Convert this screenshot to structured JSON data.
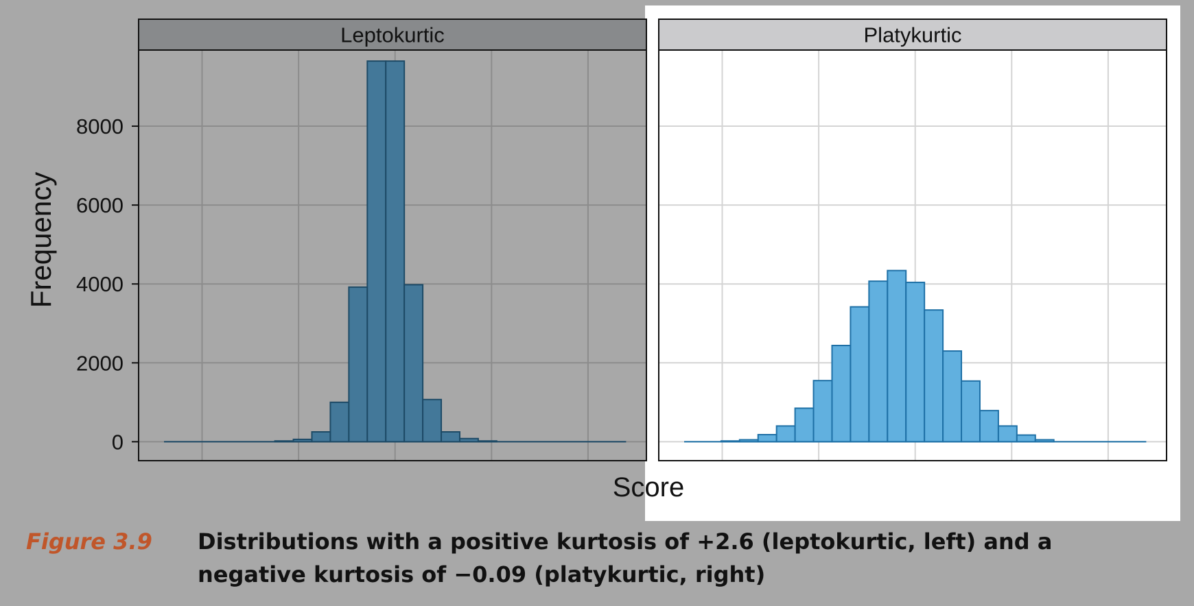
{
  "figure": {
    "label": "Figure 3.9",
    "caption": "Distributions with a positive kurtosis of +2.6 (leptokurtic, left) and a negative kurtosis of −0.09 (platykurtic, right)"
  },
  "chart_data": [
    {
      "type": "bar",
      "panel_title": "Leptokurtic",
      "title": "",
      "xlabel": "Score",
      "ylabel": "Frequency",
      "ylim": [
        -480,
        9930
      ],
      "yticks": [
        0,
        2000,
        4000,
        6000,
        8000
      ],
      "grid": true,
      "colors": {
        "fill": "#437899",
        "stroke": "#1d4a66",
        "panel_bg": "#a8a8a8",
        "grid": "#8c8c8c",
        "strip": "#888a8c"
      },
      "bin_index": [
        0,
        1,
        2,
        3,
        4,
        5,
        6,
        7,
        8,
        9,
        10,
        11,
        12,
        13,
        14,
        15,
        16,
        17,
        18,
        19,
        20,
        21,
        22,
        23,
        24
      ],
      "values": [
        0,
        0,
        0,
        0,
        0,
        0,
        20,
        60,
        250,
        1000,
        3920,
        9650,
        9650,
        3980,
        1070,
        250,
        80,
        20,
        0,
        0,
        0,
        0,
        0,
        0,
        0
      ]
    },
    {
      "type": "bar",
      "panel_title": "Platykurtic",
      "title": "",
      "xlabel": "Score",
      "ylabel": "Frequency",
      "ylim": [
        -480,
        9930
      ],
      "yticks": [
        0,
        2000,
        4000,
        6000,
        8000
      ],
      "grid": true,
      "colors": {
        "fill": "#61b0df",
        "stroke": "#1e70a6",
        "panel_bg": "#ffffff",
        "grid": "#d4d4d4",
        "strip": "#cbcbcd"
      },
      "bin_index": [
        0,
        1,
        2,
        3,
        4,
        5,
        6,
        7,
        8,
        9,
        10,
        11,
        12,
        13,
        14,
        15,
        16,
        17,
        18,
        19,
        20,
        21,
        22,
        23,
        24
      ],
      "values": [
        0,
        0,
        20,
        50,
        180,
        400,
        850,
        1550,
        2440,
        3420,
        4070,
        4340,
        4040,
        3340,
        2300,
        1540,
        790,
        400,
        170,
        50,
        0,
        0,
        0,
        0,
        0
      ]
    }
  ]
}
